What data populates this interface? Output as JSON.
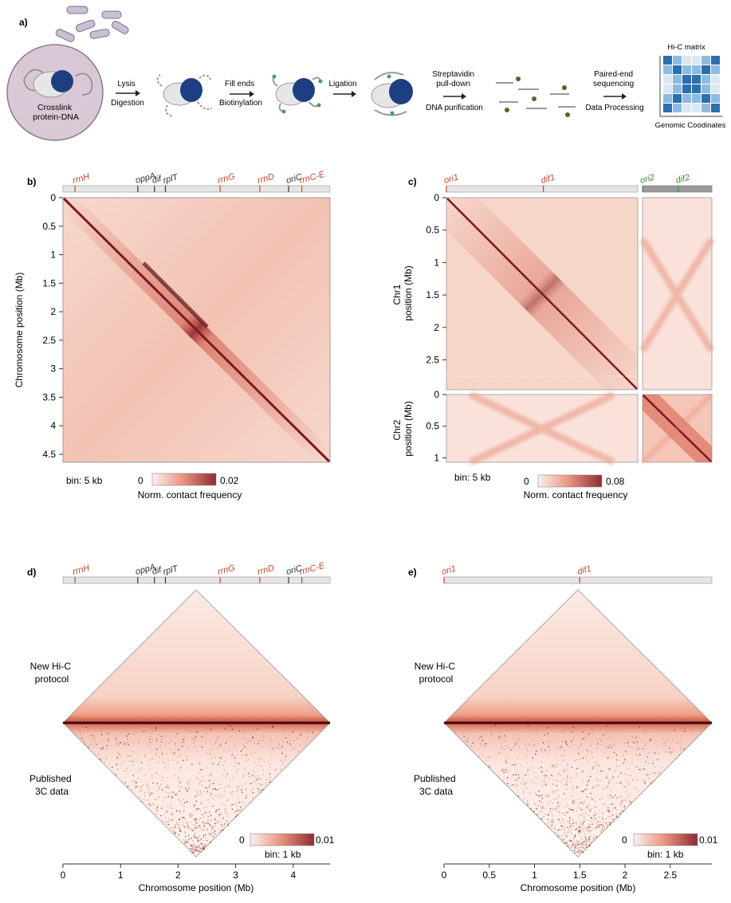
{
  "panel_a": {
    "label": "a)",
    "cell_lines": [
      "Crosslink",
      "protein-DNA"
    ],
    "steps": [
      {
        "lines": [
          "Lysis",
          "Digestion"
        ]
      },
      {
        "lines": [
          "Fill ends",
          "Biotinylation"
        ]
      },
      {
        "lines": [
          "Ligation"
        ]
      },
      {
        "lines": [
          "Streptavidin",
          "pull-down",
          "DNA purification"
        ]
      },
      {
        "lines": [
          "Paired-end",
          "sequencing",
          "Data Processing"
        ]
      }
    ],
    "matrix_title": "Hi-C matrix",
    "matrix_axis": "Genomic Coodinates"
  },
  "chart_data": [
    {
      "type": "heatmap",
      "panel": "b)",
      "ylabel": "Chromosome position (Mb)",
      "yticks": [
        "0",
        "0.5",
        "1",
        "1.5",
        "2",
        "2.5",
        "3",
        "3.5",
        "4",
        "4.5"
      ],
      "bin_label": "bin: 5 kb",
      "colorbar": {
        "min": "0",
        "max": "0.02",
        "label": "Norm. contact frequency"
      },
      "annotations": [
        {
          "text": "rrnH",
          "pos": 0.21,
          "color": "#c5452a"
        },
        {
          "text": "oppA",
          "pos": 1.3,
          "color": "#333333"
        },
        {
          "text": "dif",
          "pos": 1.59,
          "color": "#333333"
        },
        {
          "text": "rplT",
          "pos": 1.78,
          "color": "#333333"
        },
        {
          "text": "rrnG",
          "pos": 2.73,
          "color": "#c5452a"
        },
        {
          "text": "rrnD",
          "pos": 3.42,
          "color": "#c5452a"
        },
        {
          "text": "oriC",
          "pos": 3.92,
          "color": "#333333"
        },
        {
          "text": "rrnC-E",
          "pos": 4.15,
          "color": "#c5452a"
        }
      ],
      "ylim": [
        0,
        4.64
      ]
    },
    {
      "type": "heatmap",
      "panel": "c)",
      "chr1_label": [
        "Chr1",
        "position (Mb)"
      ],
      "chr2_label": [
        "Chr2",
        "position (Mb)"
      ],
      "chr1_ticks": [
        "0",
        "0.5",
        "1",
        "1.5",
        "2",
        "2.5"
      ],
      "chr2_ticks": [
        "0",
        "0.5",
        "1"
      ],
      "bin_label": "bin: 5 kb",
      "colorbar": {
        "min": "0",
        "max": "0.08",
        "label": "Norm. contact frequency"
      },
      "annotations_chr1": [
        {
          "text": "ori1",
          "pos": 0.0,
          "color": "#c5452a"
        },
        {
          "text": "dif1",
          "pos": 1.5,
          "color": "#c5452a"
        }
      ],
      "annotations_chr2": [
        {
          "text": "ori2",
          "pos": 0.0,
          "color": "#3a8a3a"
        },
        {
          "text": "dif2",
          "pos": 0.55,
          "color": "#3a8a3a"
        }
      ],
      "chr1_length": 2.96,
      "chr2_length": 1.07
    },
    {
      "type": "heatmap",
      "panel": "d)",
      "top_label": [
        "New Hi-C",
        "protocol"
      ],
      "bottom_label": [
        "Published",
        "3C data"
      ],
      "xlabel": "Chromosome position (Mb)",
      "xticks": [
        "0",
        "1",
        "2",
        "3",
        "4"
      ],
      "bin_label": "bin: 1 kb",
      "colorbar": {
        "min": "0",
        "max": "0.01"
      },
      "annotations": [
        {
          "text": "rrnH",
          "pos": 0.21,
          "color": "#c5452a"
        },
        {
          "text": "oppA",
          "pos": 1.3,
          "color": "#333333"
        },
        {
          "text": "dif",
          "pos": 1.59,
          "color": "#333333"
        },
        {
          "text": "rplT",
          "pos": 1.78,
          "color": "#333333"
        },
        {
          "text": "rrnG",
          "pos": 2.73,
          "color": "#c5452a"
        },
        {
          "text": "rrnD",
          "pos": 3.42,
          "color": "#c5452a"
        },
        {
          "text": "oriC",
          "pos": 3.92,
          "color": "#333333"
        },
        {
          "text": "rrnC-E",
          "pos": 4.15,
          "color": "#c5452a"
        }
      ],
      "xlim": [
        0,
        4.64
      ]
    },
    {
      "type": "heatmap",
      "panel": "e)",
      "top_label": [
        "New Hi-C",
        "protocol"
      ],
      "bottom_label": [
        "Published",
        "3C data"
      ],
      "xlabel": "Chromosome position (Mb)",
      "xticks": [
        "0",
        "0.5",
        "1",
        "1.5",
        "2",
        "2.5"
      ],
      "bin_label": "bin: 1 kb",
      "colorbar": {
        "min": "0",
        "max": "0.01"
      },
      "annotations": [
        {
          "text": "ori1",
          "pos": 0.0,
          "color": "#c5452a"
        },
        {
          "text": "dif1",
          "pos": 1.5,
          "color": "#c5452a"
        }
      ],
      "xlim": [
        0,
        2.96
      ]
    }
  ]
}
